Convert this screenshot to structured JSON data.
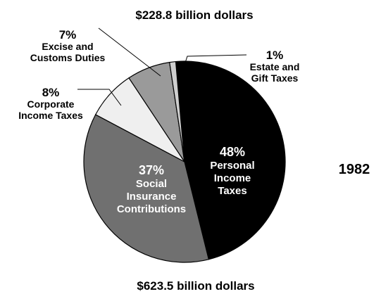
{
  "chart_data": {
    "type": "pie",
    "title": "$228.8 billion dollars",
    "subtitle": "$623.5 billion dollars",
    "year_label": "1982",
    "slices": [
      {
        "label_lines": [
          "Personal",
          "Income",
          "Taxes"
        ],
        "percent_label": "48%",
        "value": 48,
        "color": "#000000",
        "text_color": "#ffffff"
      },
      {
        "label_lines": [
          "Social",
          "Insurance",
          "Contributions"
        ],
        "percent_label": "37%",
        "value": 37,
        "color": "#707070",
        "text_color": "#ffffff"
      },
      {
        "label_lines": [
          "Corporate",
          "Income Taxes"
        ],
        "percent_label": "8%",
        "value": 8,
        "color": "#efefef",
        "text_color": "#000000"
      },
      {
        "label_lines": [
          "Excise and",
          "Customs Duties"
        ],
        "percent_label": "7%",
        "value": 7,
        "color": "#9a9a9a",
        "text_color": "#000000"
      },
      {
        "label_lines": [
          "Estate and",
          "Gift Taxes"
        ],
        "percent_label": "1%",
        "value": 1,
        "color": "#cfcfcf",
        "text_color": "#000000"
      }
    ]
  }
}
